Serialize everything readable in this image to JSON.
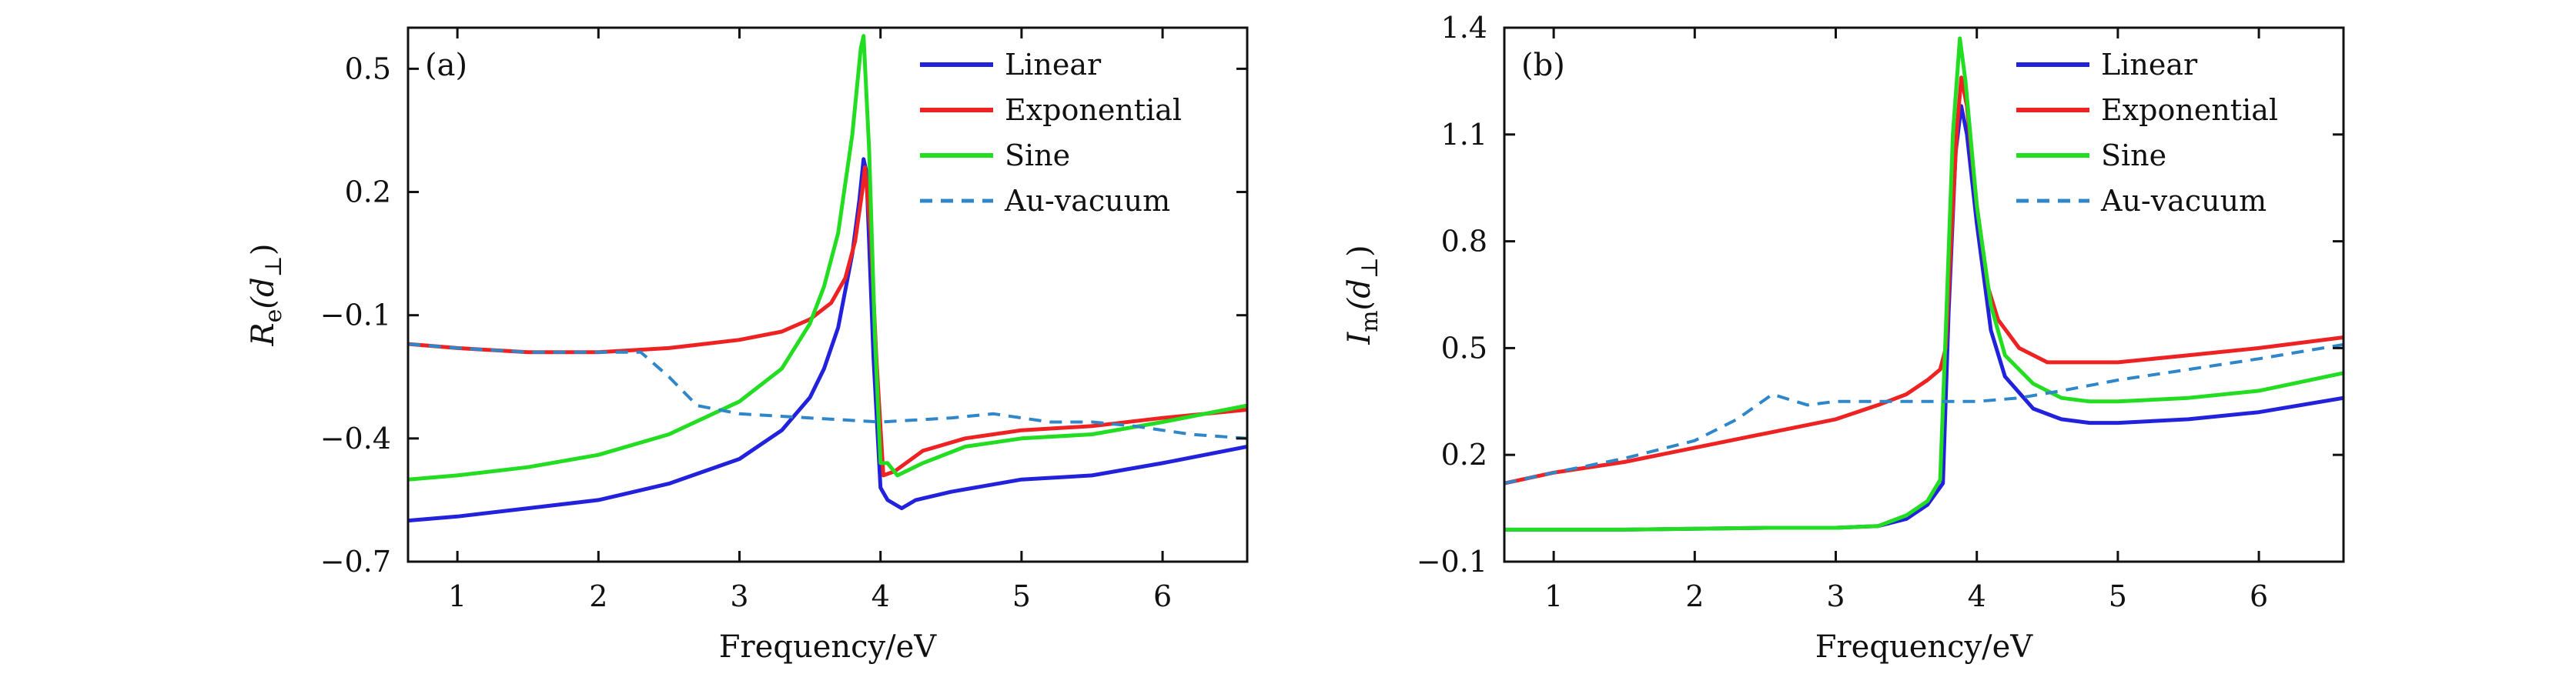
{
  "chart_data": [
    {
      "type": "line",
      "panel_label": "(a)",
      "xlabel": "Frequency/eV",
      "ylabel": "R_e(d_⊥)",
      "ylabel_main": "R",
      "ylabel_sub": "e",
      "ylabel_arg": "(d",
      "ylabel_arg_sub": "⊥",
      "ylabel_close": ")",
      "xlim": [
        0.65,
        6.6
      ],
      "ylim": [
        -0.7,
        0.6
      ],
      "x_ticks": [
        1,
        2,
        3,
        4,
        5,
        6
      ],
      "x_tick_labels": [
        "1",
        "2",
        "3",
        "4",
        "5",
        "6"
      ],
      "y_ticks": [
        -0.7,
        -0.4,
        -0.1,
        0.2,
        0.5
      ],
      "y_tick_labels": [
        "−0.7",
        "−0.4",
        "−0.1",
        "0.2",
        "0.5"
      ],
      "legend_position": "top-right",
      "series": [
        {
          "name": "Linear",
          "color": "#2222dd",
          "dash": "solid",
          "points": [
            [
              0.65,
              -0.6
            ],
            [
              1,
              -0.59
            ],
            [
              1.5,
              -0.57
            ],
            [
              2,
              -0.55
            ],
            [
              2.5,
              -0.51
            ],
            [
              3,
              -0.45
            ],
            [
              3.3,
              -0.38
            ],
            [
              3.5,
              -0.3
            ],
            [
              3.6,
              -0.23
            ],
            [
              3.7,
              -0.13
            ],
            [
              3.8,
              0.05
            ],
            [
              3.85,
              0.18
            ],
            [
              3.88,
              0.28
            ],
            [
              3.9,
              0.25
            ],
            [
              3.95,
              -0.2
            ],
            [
              4.0,
              -0.52
            ],
            [
              4.05,
              -0.55
            ],
            [
              4.15,
              -0.57
            ],
            [
              4.25,
              -0.55
            ],
            [
              4.5,
              -0.53
            ],
            [
              5,
              -0.5
            ],
            [
              5.5,
              -0.49
            ],
            [
              6,
              -0.46
            ],
            [
              6.6,
              -0.42
            ]
          ]
        },
        {
          "name": "Exponential",
          "color": "#ee2222",
          "dash": "solid",
          "points": [
            [
              0.65,
              -0.17
            ],
            [
              1,
              -0.18
            ],
            [
              1.5,
              -0.19
            ],
            [
              2,
              -0.19
            ],
            [
              2.5,
              -0.18
            ],
            [
              3,
              -0.16
            ],
            [
              3.3,
              -0.14
            ],
            [
              3.5,
              -0.11
            ],
            [
              3.65,
              -0.07
            ],
            [
              3.75,
              -0.01
            ],
            [
              3.82,
              0.08
            ],
            [
              3.87,
              0.2
            ],
            [
              3.89,
              0.26
            ],
            [
              3.93,
              0.1
            ],
            [
              3.97,
              -0.2
            ],
            [
              4.02,
              -0.49
            ],
            [
              4.1,
              -0.48
            ],
            [
              4.3,
              -0.43
            ],
            [
              4.6,
              -0.4
            ],
            [
              5,
              -0.38
            ],
            [
              5.5,
              -0.37
            ],
            [
              6,
              -0.35
            ],
            [
              6.6,
              -0.33
            ]
          ]
        },
        {
          "name": "Sine",
          "color": "#22dd22",
          "dash": "solid",
          "points": [
            [
              0.65,
              -0.5
            ],
            [
              1,
              -0.49
            ],
            [
              1.5,
              -0.47
            ],
            [
              2,
              -0.44
            ],
            [
              2.5,
              -0.39
            ],
            [
              3,
              -0.31
            ],
            [
              3.3,
              -0.23
            ],
            [
              3.5,
              -0.12
            ],
            [
              3.6,
              -0.03
            ],
            [
              3.7,
              0.1
            ],
            [
              3.8,
              0.34
            ],
            [
              3.86,
              0.55
            ],
            [
              3.88,
              0.58
            ],
            [
              3.92,
              0.3
            ],
            [
              3.96,
              -0.15
            ],
            [
              4.0,
              -0.46
            ],
            [
              4.05,
              -0.46
            ],
            [
              4.12,
              -0.49
            ],
            [
              4.3,
              -0.46
            ],
            [
              4.6,
              -0.42
            ],
            [
              5,
              -0.4
            ],
            [
              5.5,
              -0.39
            ],
            [
              6,
              -0.36
            ],
            [
              6.6,
              -0.32
            ]
          ]
        },
        {
          "name": "Au-vacuum",
          "color": "#2f86c8",
          "dash": "dashed",
          "points": [
            [
              0.65,
              -0.17
            ],
            [
              1,
              -0.18
            ],
            [
              1.5,
              -0.19
            ],
            [
              2,
              -0.19
            ],
            [
              2.3,
              -0.19
            ],
            [
              2.5,
              -0.25
            ],
            [
              2.7,
              -0.32
            ],
            [
              3,
              -0.34
            ],
            [
              3.5,
              -0.35
            ],
            [
              4,
              -0.36
            ],
            [
              4.5,
              -0.35
            ],
            [
              4.8,
              -0.34
            ],
            [
              5.2,
              -0.36
            ],
            [
              5.5,
              -0.36
            ],
            [
              5.8,
              -0.37
            ],
            [
              6.2,
              -0.39
            ],
            [
              6.6,
              -0.4
            ]
          ]
        }
      ]
    },
    {
      "type": "line",
      "panel_label": "(b)",
      "xlabel": "Frequency/eV",
      "ylabel": "I_m(d_⊥)",
      "ylabel_main": "I",
      "ylabel_sub": "m",
      "ylabel_arg": "(d",
      "ylabel_arg_sub": "⊥",
      "ylabel_close": ")",
      "xlim": [
        0.65,
        6.6
      ],
      "ylim": [
        -0.1,
        1.4
      ],
      "x_ticks": [
        1,
        2,
        3,
        4,
        5,
        6
      ],
      "x_tick_labels": [
        "1",
        "2",
        "3",
        "4",
        "5",
        "6"
      ],
      "y_ticks": [
        -0.1,
        0.2,
        0.5,
        0.8,
        1.1,
        1.4
      ],
      "y_tick_labels": [
        "−0.1",
        "0.2",
        "0.5",
        "0.8",
        "1.1",
        "1.4"
      ],
      "legend_position": "top-right",
      "series": [
        {
          "name": "Linear",
          "color": "#2222dd",
          "dash": "solid",
          "points": [
            [
              0.65,
              -0.01
            ],
            [
              1.5,
              -0.01
            ],
            [
              2.5,
              -0.005
            ],
            [
              3.0,
              -0.005
            ],
            [
              3.3,
              0.0
            ],
            [
              3.5,
              0.02
            ],
            [
              3.65,
              0.06
            ],
            [
              3.76,
              0.12
            ],
            [
              3.8,
              0.6
            ],
            [
              3.85,
              1.05
            ],
            [
              3.89,
              1.18
            ],
            [
              3.93,
              1.1
            ],
            [
              4.0,
              0.85
            ],
            [
              4.1,
              0.55
            ],
            [
              4.2,
              0.42
            ],
            [
              4.4,
              0.33
            ],
            [
              4.6,
              0.3
            ],
            [
              4.8,
              0.29
            ],
            [
              5,
              0.29
            ],
            [
              5.5,
              0.3
            ],
            [
              6,
              0.32
            ],
            [
              6.6,
              0.36
            ]
          ]
        },
        {
          "name": "Exponential",
          "color": "#ee2222",
          "dash": "solid",
          "points": [
            [
              0.65,
              0.12
            ],
            [
              1,
              0.15
            ],
            [
              1.5,
              0.18
            ],
            [
              2,
              0.22
            ],
            [
              2.5,
              0.26
            ],
            [
              3,
              0.3
            ],
            [
              3.3,
              0.34
            ],
            [
              3.5,
              0.37
            ],
            [
              3.65,
              0.41
            ],
            [
              3.74,
              0.44
            ],
            [
              3.78,
              0.5
            ],
            [
              3.82,
              0.82
            ],
            [
              3.86,
              1.12
            ],
            [
              3.89,
              1.26
            ],
            [
              3.93,
              1.18
            ],
            [
              4.0,
              0.9
            ],
            [
              4.08,
              0.67
            ],
            [
              4.15,
              0.58
            ],
            [
              4.3,
              0.5
            ],
            [
              4.5,
              0.46
            ],
            [
              5,
              0.46
            ],
            [
              5.5,
              0.48
            ],
            [
              6,
              0.5
            ],
            [
              6.6,
              0.53
            ]
          ]
        },
        {
          "name": "Sine",
          "color": "#22dd22",
          "dash": "solid",
          "points": [
            [
              0.65,
              -0.01
            ],
            [
              1.5,
              -0.01
            ],
            [
              2.5,
              -0.005
            ],
            [
              3.0,
              -0.005
            ],
            [
              3.3,
              0.0
            ],
            [
              3.5,
              0.03
            ],
            [
              3.65,
              0.07
            ],
            [
              3.74,
              0.13
            ],
            [
              3.78,
              0.55
            ],
            [
              3.83,
              1.1
            ],
            [
              3.88,
              1.37
            ],
            [
              3.92,
              1.25
            ],
            [
              4.0,
              0.9
            ],
            [
              4.1,
              0.62
            ],
            [
              4.2,
              0.48
            ],
            [
              4.4,
              0.4
            ],
            [
              4.6,
              0.36
            ],
            [
              4.8,
              0.35
            ],
            [
              5,
              0.35
            ],
            [
              5.5,
              0.36
            ],
            [
              6,
              0.38
            ],
            [
              6.6,
              0.43
            ]
          ]
        },
        {
          "name": "Au-vacuum",
          "color": "#2f86c8",
          "dash": "dashed",
          "points": [
            [
              0.65,
              0.12
            ],
            [
              1,
              0.15
            ],
            [
              1.5,
              0.19
            ],
            [
              2,
              0.24
            ],
            [
              2.3,
              0.3
            ],
            [
              2.55,
              0.37
            ],
            [
              2.8,
              0.34
            ],
            [
              3,
              0.35
            ],
            [
              3.5,
              0.35
            ],
            [
              4,
              0.35
            ],
            [
              4.3,
              0.36
            ],
            [
              4.6,
              0.38
            ],
            [
              5,
              0.41
            ],
            [
              5.5,
              0.44
            ],
            [
              6,
              0.47
            ],
            [
              6.6,
              0.51
            ]
          ]
        }
      ]
    }
  ]
}
